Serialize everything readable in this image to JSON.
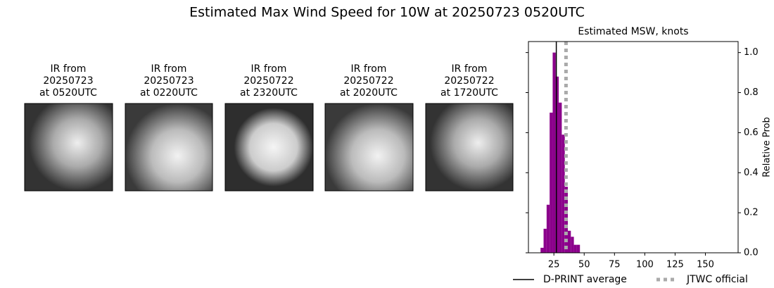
{
  "title": "Estimated Max Wind Speed for 10W at 20250723 0520UTC",
  "panels": [
    {
      "lines": [
        "IR from",
        "20250723",
        "at 0520UTC"
      ]
    },
    {
      "lines": [
        "IR from",
        "20250723",
        "at 0220UTC"
      ]
    },
    {
      "lines": [
        "IR from",
        "20250722",
        "at 2320UTC"
      ]
    },
    {
      "lines": [
        "IR from",
        "20250722",
        "at 2020UTC"
      ]
    },
    {
      "lines": [
        "IR from",
        "20250722",
        "at 1720UTC"
      ]
    }
  ],
  "chart_data": {
    "type": "histogram",
    "title": "Estimated MSW, knots",
    "y_label": "Relative Prob",
    "color": "#8b008b",
    "bins": [
      14,
      16.5,
      19,
      21.5,
      24,
      26.5,
      29,
      31.5,
      34,
      36.5,
      39,
      41.5,
      44,
      46.5
    ],
    "values": [
      0.025,
      0.12,
      0.24,
      0.7,
      1.0,
      0.88,
      0.75,
      0.59,
      0.33,
      0.11,
      0.08,
      0.04,
      0.04
    ],
    "xlim": [
      4,
      177
    ],
    "ylim": [
      0,
      1.055
    ],
    "xticks": [
      25,
      50,
      75,
      100,
      125,
      150
    ],
    "yticks": [
      {
        "value": 0,
        "label": "0.0"
      },
      0.2,
      0.4,
      0.6,
      0.8,
      {
        "value": 1,
        "label": "1.0"
      }
    ],
    "reference_lines": [
      {
        "name": "D-PRINT average",
        "value": 27,
        "color": "#000000",
        "style": "solid"
      },
      {
        "name": "JTWC official",
        "value": 35,
        "color": "#aaaaaa",
        "style": "dotted"
      }
    ]
  }
}
